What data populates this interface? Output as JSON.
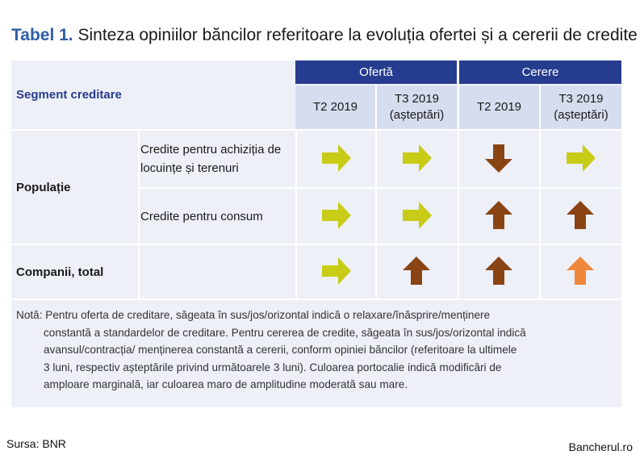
{
  "title": {
    "number": "Tabel 1.",
    "text": "Sinteza opiniilor băncilor referitoare la evoluția ofertei și a cererii de credite"
  },
  "table": {
    "segment_header": "Segment creditare",
    "groups": [
      {
        "label": "Ofertă",
        "periods": [
          "T2 2019",
          "T3 2019\n(așteptări)"
        ]
      },
      {
        "label": "Cerere",
        "periods": [
          "T2 2019",
          "T3 2019\n(așteptări)"
        ]
      }
    ],
    "rows": [
      {
        "group": "Populație",
        "label": "Credite pentru achiziția de locuințe și terenuri",
        "arrows": [
          {
            "dir": "right",
            "color": "#c8cc17"
          },
          {
            "dir": "right",
            "color": "#c8cc17"
          },
          {
            "dir": "down",
            "color": "#8a4414"
          },
          {
            "dir": "right",
            "color": "#c8cc17"
          }
        ]
      },
      {
        "group": "Populație",
        "label": "Credite pentru consum",
        "arrows": [
          {
            "dir": "right",
            "color": "#c8cc17"
          },
          {
            "dir": "right",
            "color": "#c8cc17"
          },
          {
            "dir": "up",
            "color": "#8a4414"
          },
          {
            "dir": "up",
            "color": "#8a4414"
          }
        ]
      },
      {
        "group": "Companii, total",
        "label": "",
        "arrows": [
          {
            "dir": "right",
            "color": "#c8cc17"
          },
          {
            "dir": "up",
            "color": "#8a4414"
          },
          {
            "dir": "up",
            "color": "#8a4414"
          },
          {
            "dir": "up",
            "color": "#f0883c"
          }
        ]
      }
    ],
    "note_lines": [
      "Notă: Pentru oferta de creditare, săgeata în sus/jos/orizontal indică o relaxare/înăsprire/menținere",
      "constantă a  standardelor de creditare. Pentru cererea de credite, săgeata în sus/jos/orizontal indică",
      "avansul/contracția/ menținerea constantă a cererii, conform opiniei băncilor (referitoare la ultimele",
      "3 luni, respectiv așteptările privind următoarele 3 luni). Culoarea portocalie indică modificări de",
      "amploare marginală, iar culoarea maro de amplitudine moderată sau mare."
    ]
  },
  "footer": {
    "source": "Sursa: BNR",
    "brand": "Bancherul.ro"
  }
}
